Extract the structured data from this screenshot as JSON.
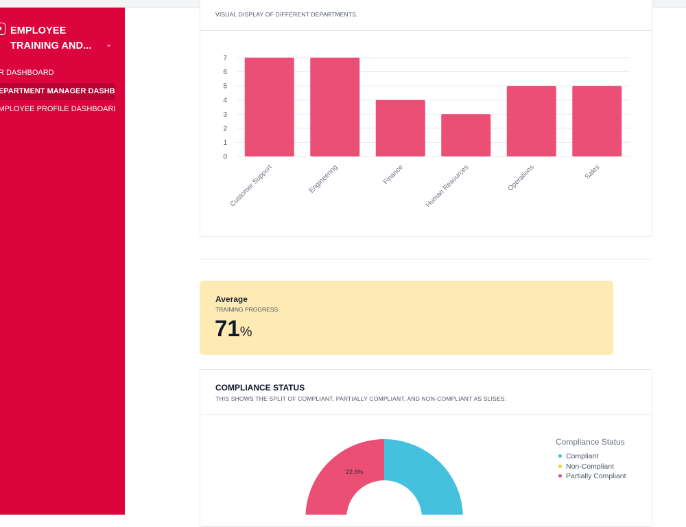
{
  "sidebar": {
    "app_title_line1": "EMPLOYEE",
    "app_title_line2": "TRAINING AND...",
    "items": [
      {
        "label": "HR DASHBOARD"
      },
      {
        "label": "DEPARTMENT MANAGER DASHBOARD"
      },
      {
        "label": "EMPLOYEE PROFILE DASHBOARD"
      }
    ],
    "accent": "#dc043c"
  },
  "dept_card": {
    "subtitle": "VISUAL DISPLAY OF DIFFERENT DEPARTMENTS."
  },
  "average": {
    "label": "Average",
    "subtitle": "TRAINING PROGRESS",
    "value": "71",
    "unit": "%"
  },
  "compliance_card": {
    "title": "COMPLIANCE STATUS",
    "subtitle": "THIS SHOWS THE SPLIT OF COMPLIANT, PARTIALLY COMPLIANT, AND NON-COMPLIANT AS SLISES."
  },
  "chart_data": [
    {
      "type": "bar",
      "categories": [
        "Customer Support",
        "Engineering",
        "Finance",
        "Human Resources",
        "Operations",
        "Sales"
      ],
      "values": [
        7,
        7,
        4,
        3,
        5,
        5
      ],
      "ylim": [
        0,
        7
      ],
      "yticks": [
        0,
        1,
        2,
        3,
        4,
        5,
        6,
        7
      ],
      "grid": true,
      "color": "#ec4f75"
    },
    {
      "type": "pie",
      "legend_title": "Compliance Status",
      "legend_position": "right",
      "labels": [
        "Compliant",
        "Non-Compliant",
        "Partially Compliant"
      ],
      "colors": [
        "#45c1de",
        "#fbcb2d",
        "#ec4f75"
      ],
      "values": [
        null,
        null,
        22.6
      ],
      "visible_label": "22.6%"
    }
  ]
}
